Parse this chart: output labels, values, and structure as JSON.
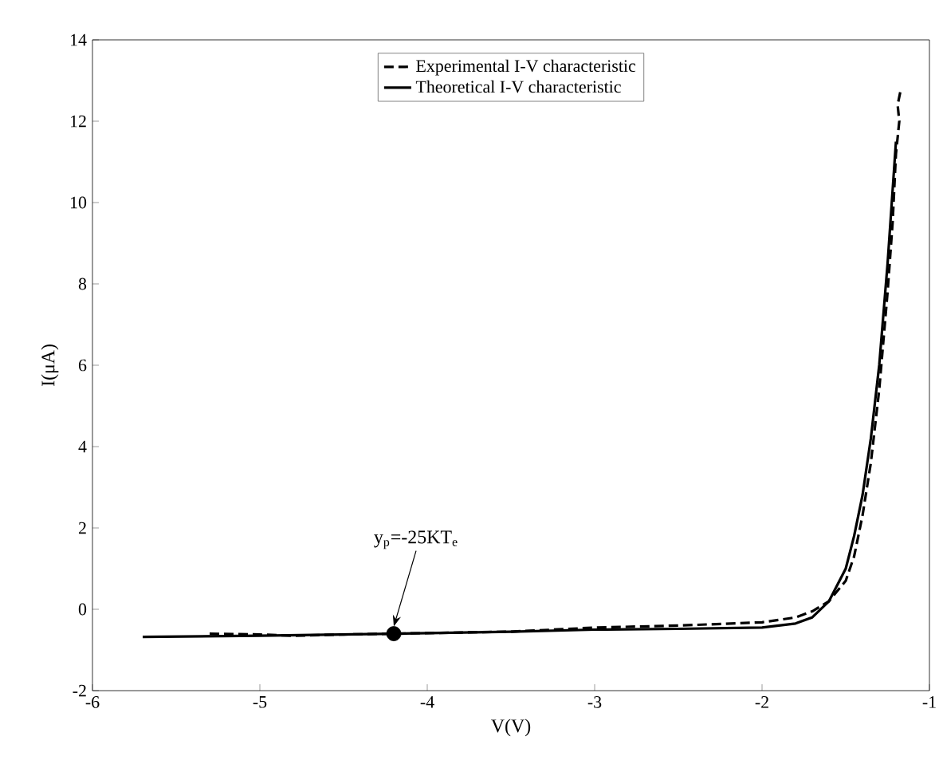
{
  "chart_data": {
    "type": "line",
    "xlabel": "V(V)",
    "ylabel": "I(μA)",
    "xlim": [
      -6,
      -1
    ],
    "ylim": [
      -2,
      14
    ],
    "xticks": [
      -6,
      -5,
      -4,
      -3,
      -2,
      -1
    ],
    "yticks": [
      -2,
      0,
      2,
      4,
      6,
      8,
      10,
      12,
      14
    ],
    "legend": "top",
    "grid": false,
    "series": [
      {
        "name": "Experimental I-V characteristic",
        "color": "#000000",
        "line_style": "dashed",
        "marker": "none",
        "x": [
          -5.3,
          -5.0,
          -4.8,
          -4.5,
          -4.2,
          -3.8,
          -3.5,
          -3.0,
          -2.5,
          -2.0,
          -1.8,
          -1.7,
          -1.6,
          -1.5,
          -1.45,
          -1.4,
          -1.35,
          -1.3,
          -1.25,
          -1.22,
          -1.2,
          -1.18,
          -1.19,
          -1.17
        ],
        "values": [
          -0.6,
          -0.62,
          -0.65,
          -0.62,
          -0.6,
          -0.57,
          -0.55,
          -0.45,
          -0.4,
          -0.32,
          -0.2,
          -0.05,
          0.2,
          0.7,
          1.3,
          2.3,
          3.6,
          5.4,
          7.8,
          9.5,
          11.2,
          12.0,
          12.4,
          12.8
        ]
      },
      {
        "name": "Theoretical I-V characteristic",
        "color": "#000000",
        "line_style": "solid",
        "marker": "none",
        "x": [
          -5.7,
          -5.0,
          -4.2,
          -3.5,
          -3.0,
          -2.5,
          -2.0,
          -1.8,
          -1.7,
          -1.6,
          -1.5,
          -1.45,
          -1.4,
          -1.35,
          -1.3,
          -1.25,
          -1.2
        ],
        "values": [
          -0.68,
          -0.65,
          -0.6,
          -0.55,
          -0.5,
          -0.48,
          -0.45,
          -0.35,
          -0.2,
          0.2,
          1.0,
          1.8,
          2.8,
          4.2,
          6.0,
          8.5,
          11.5
        ]
      },
      {
        "type": "scatter",
        "color": "#000000",
        "marker": "circle",
        "x": [
          -4.2
        ],
        "values": [
          -0.6
        ]
      }
    ],
    "annotations": [
      {
        "text": "y$_{p}$=-25KT$_{e}$",
        "x": -4.2,
        "y": -0.6
      }
    ]
  }
}
